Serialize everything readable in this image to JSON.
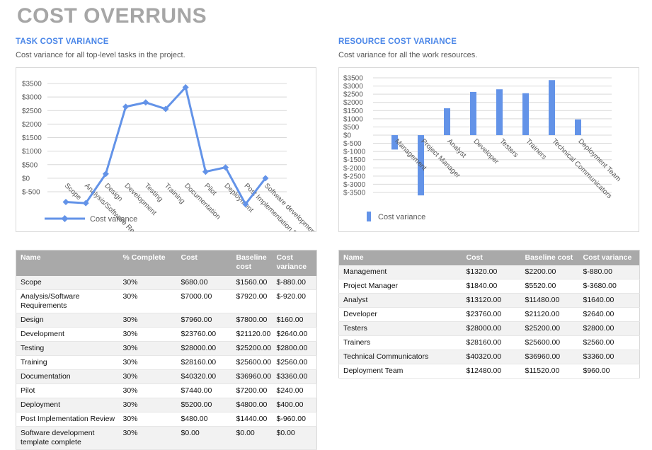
{
  "title": "COST OVERRUNS",
  "colors": {
    "title_gray": "#a6a6a6",
    "heading_blue": "#4a86e8",
    "series_blue": "#6393e8",
    "text_gray": "#595959",
    "grid_gray": "#d9d9d9",
    "table_header_bg": "#a9a9a9",
    "row_stripe": "#f2f2f2"
  },
  "sections": [
    {
      "heading": "TASK COST VARIANCE",
      "description": "Cost variance for all top-level tasks in the project.",
      "chart_data": {
        "type": "line",
        "series_name": "Cost variance",
        "categories": [
          "Scope",
          "Analysis/Software Requirements",
          "Design",
          "Development",
          "Testing",
          "Training",
          "Documentation",
          "Pilot",
          "Deployment",
          "Post Implementation Review",
          "Software development template complete"
        ],
        "values": [
          -880,
          -920,
          160,
          2640,
          2800,
          2560,
          3360,
          240,
          400,
          -960,
          0
        ],
        "y_ticks": [
          3500,
          3000,
          2500,
          2000,
          1500,
          1000,
          500,
          0,
          -500
        ],
        "ylabel": "",
        "xlabel": "",
        "grid": true,
        "legend_position": "bottom-left"
      },
      "table": {
        "headers": [
          "Name",
          "% Complete",
          "Cost",
          "Baseline cost",
          "Cost variance"
        ],
        "rows": [
          [
            "Scope",
            "30%",
            "$680.00",
            "$1560.00",
            "$-880.00"
          ],
          [
            "Analysis/Software Requirements",
            "30%",
            "$7000.00",
            "$7920.00",
            "$-920.00"
          ],
          [
            "Design",
            "30%",
            "$7960.00",
            "$7800.00",
            "$160.00"
          ],
          [
            "Development",
            "30%",
            "$23760.00",
            "$21120.00",
            "$2640.00"
          ],
          [
            "Testing",
            "30%",
            "$28000.00",
            "$25200.00",
            "$2800.00"
          ],
          [
            "Training",
            "30%",
            "$28160.00",
            "$25600.00",
            "$2560.00"
          ],
          [
            "Documentation",
            "30%",
            "$40320.00",
            "$36960.00",
            "$3360.00"
          ],
          [
            "Pilot",
            "30%",
            "$7440.00",
            "$7200.00",
            "$240.00"
          ],
          [
            "Deployment",
            "30%",
            "$5200.00",
            "$4800.00",
            "$400.00"
          ],
          [
            "Post Implementation Review",
            "30%",
            "$480.00",
            "$1440.00",
            "$-960.00"
          ],
          [
            "Software development template complete",
            "30%",
            "$0.00",
            "$0.00",
            "$0.00"
          ]
        ]
      }
    },
    {
      "heading": "RESOURCE COST VARIANCE",
      "description": "Cost variance for all the work resources.",
      "chart_data": {
        "type": "bar",
        "series_name": "Cost variance",
        "categories": [
          "Management",
          "Project Manager",
          "Analyst",
          "Developer",
          "Testers",
          "Trainers",
          "Technical Communicators",
          "Deployment Team"
        ],
        "values": [
          -880,
          -3680,
          1640,
          2640,
          2800,
          2560,
          3360,
          960
        ],
        "y_ticks": [
          3500,
          3000,
          2500,
          2000,
          1500,
          1000,
          500,
          0,
          -500,
          -1000,
          -1500,
          -2000,
          -2500,
          -3000,
          -3500
        ],
        "ylabel": "",
        "xlabel": "",
        "grid": true,
        "legend_position": "bottom-left"
      },
      "table": {
        "headers": [
          "Name",
          "Cost",
          "Baseline cost",
          "Cost variance"
        ],
        "rows": [
          [
            "Management",
            "$1320.00",
            "$2200.00",
            "$-880.00"
          ],
          [
            "Project Manager",
            "$1840.00",
            "$5520.00",
            "$-3680.00"
          ],
          [
            "Analyst",
            "$13120.00",
            "$11480.00",
            "$1640.00"
          ],
          [
            "Developer",
            "$23760.00",
            "$21120.00",
            "$2640.00"
          ],
          [
            "Testers",
            "$28000.00",
            "$25200.00",
            "$2800.00"
          ],
          [
            "Trainers",
            "$28160.00",
            "$25600.00",
            "$2560.00"
          ],
          [
            "Technical Communicators",
            "$40320.00",
            "$36960.00",
            "$3360.00"
          ],
          [
            "Deployment Team",
            "$12480.00",
            "$11520.00",
            "$960.00"
          ]
        ]
      }
    }
  ]
}
